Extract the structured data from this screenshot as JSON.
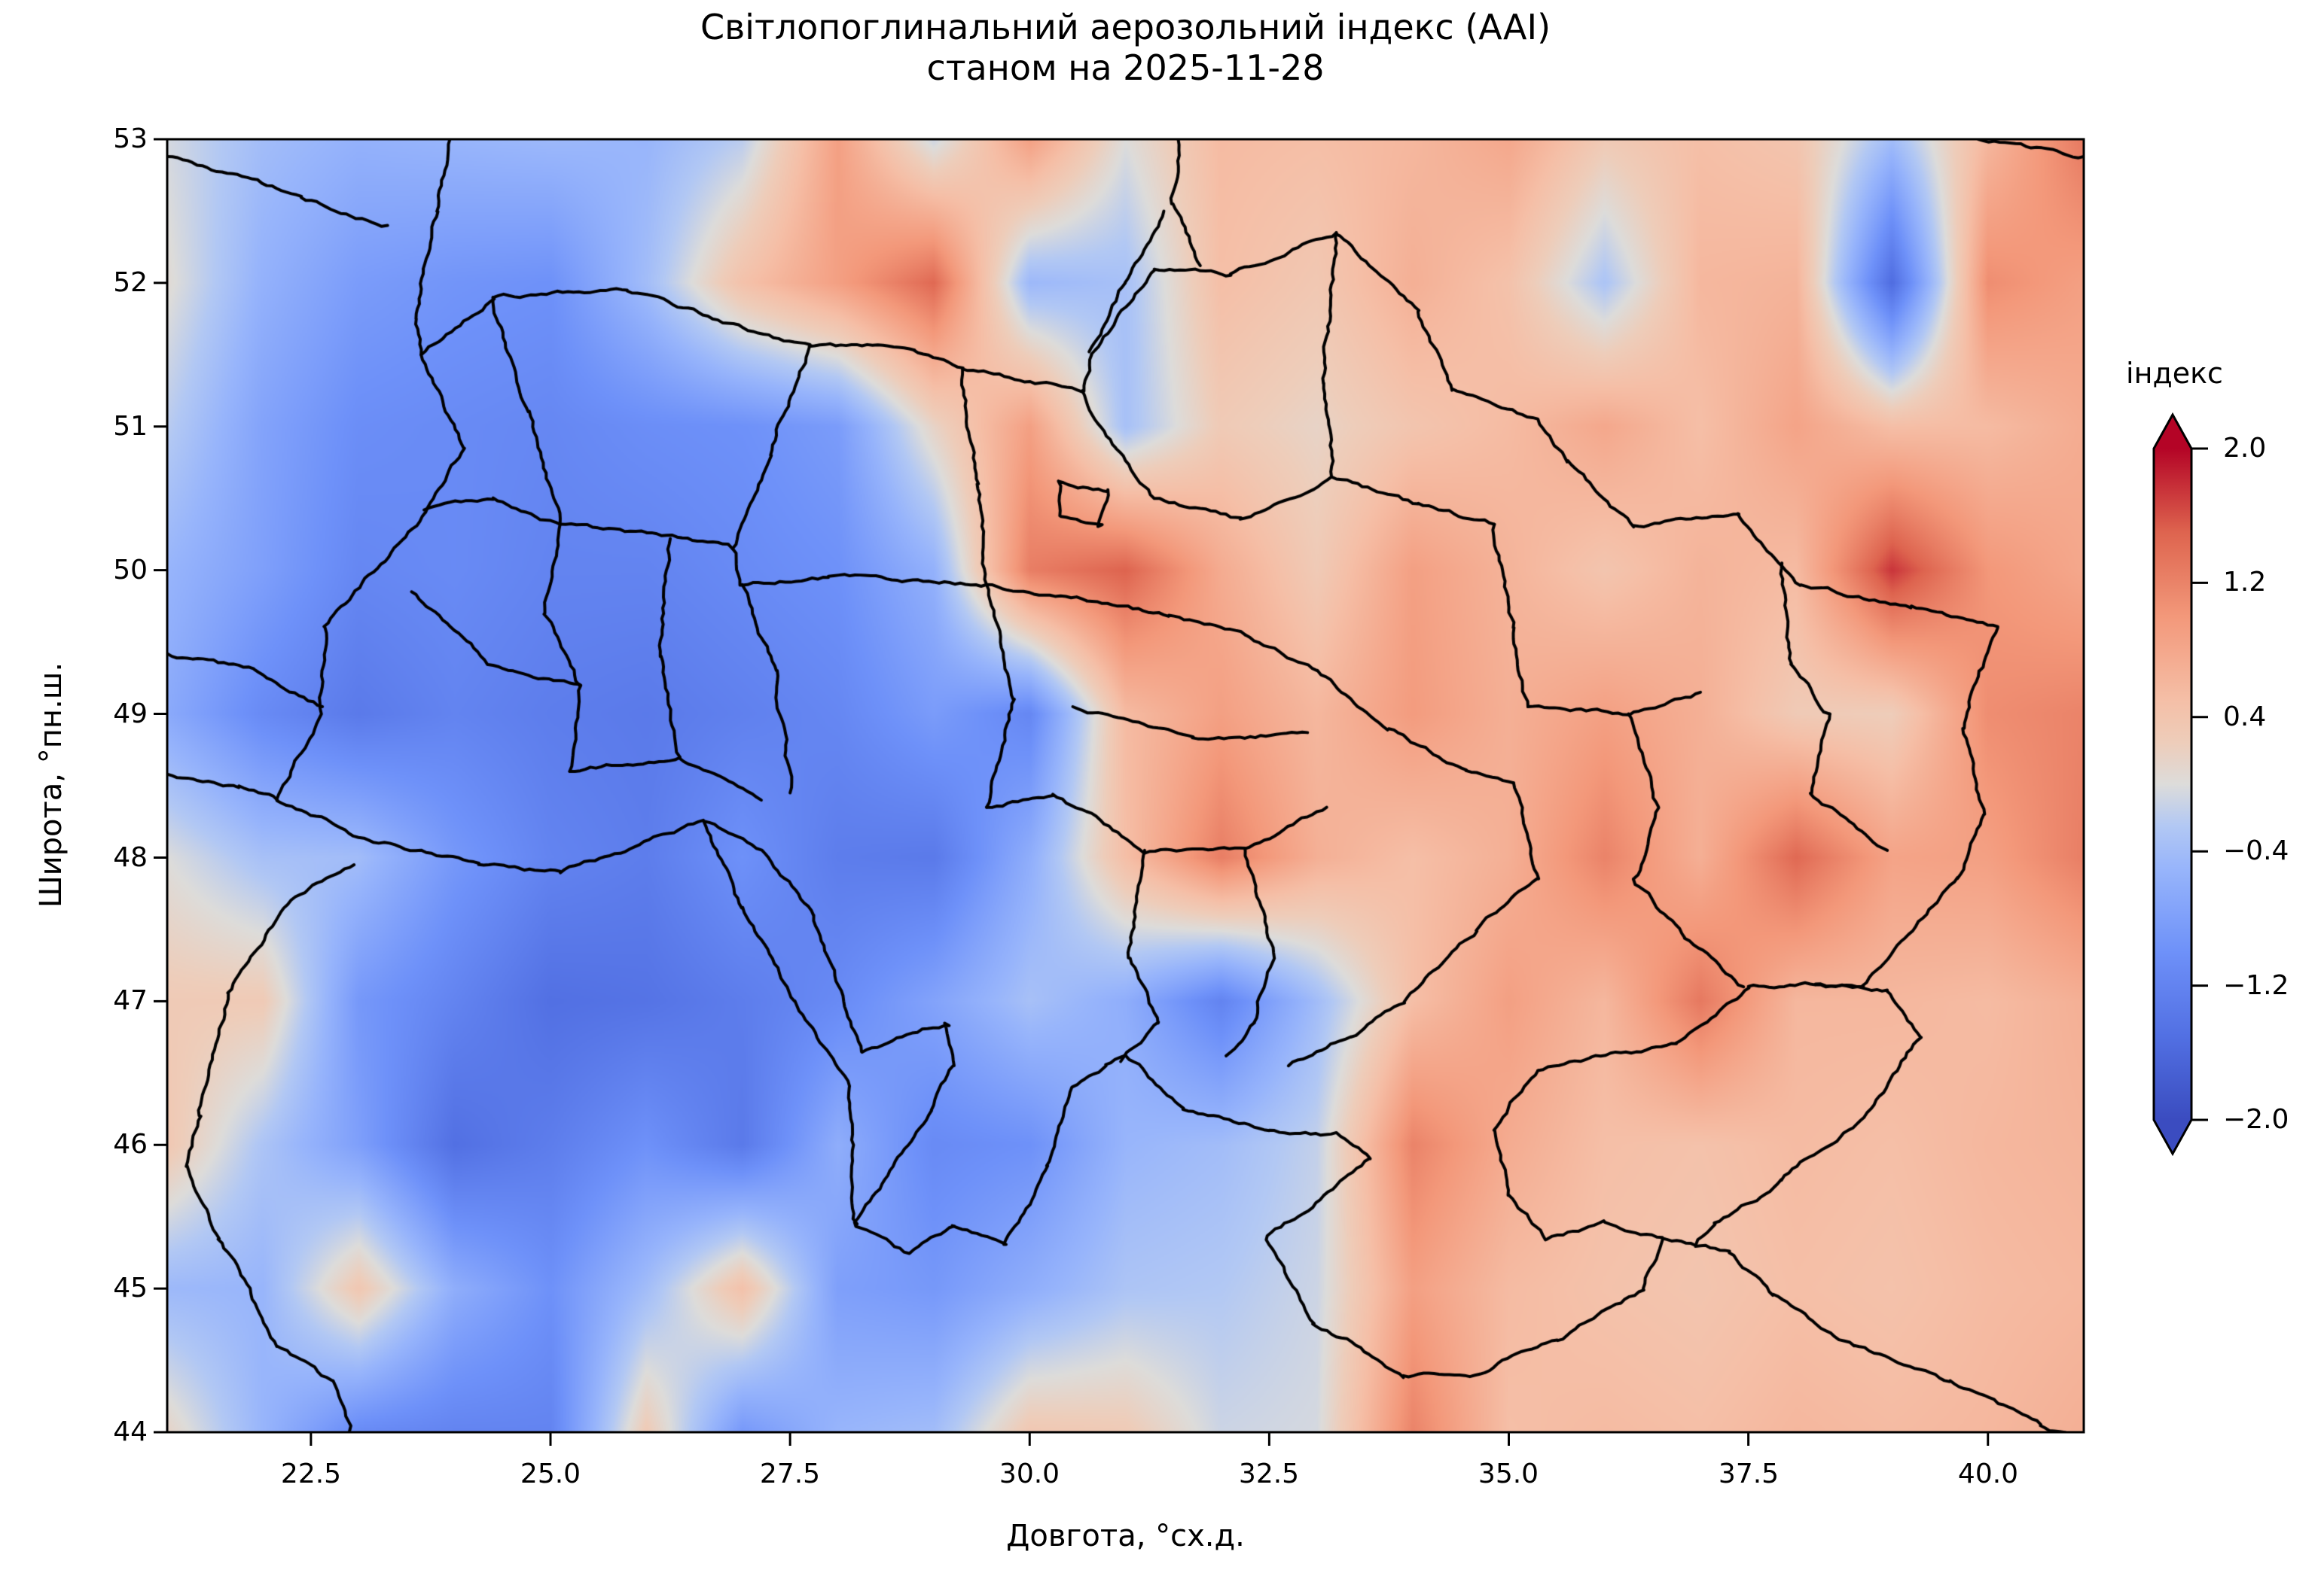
{
  "figure": {
    "title_line1": "Світлопоглинальний аерозольний індекс (AAI)",
    "title_line2": "станом на 2025-11-28"
  },
  "axes": {
    "xlabel": "Довгота, °сх.д.",
    "ylabel": "Широта, °пн.ш.",
    "x_tick_labels": [
      "22.5",
      "25.0",
      "27.5",
      "30.0",
      "32.5",
      "35.0",
      "37.5",
      "40.0"
    ],
    "x_tick_values": [
      22.5,
      25.0,
      27.5,
      30.0,
      32.5,
      35.0,
      37.5,
      40.0
    ],
    "y_tick_labels": [
      "53",
      "52",
      "51",
      "50",
      "49",
      "48",
      "47",
      "46",
      "45",
      "44"
    ],
    "y_tick_values": [
      53,
      52,
      51,
      50,
      49,
      48,
      47,
      46,
      45,
      44
    ],
    "xlim": [
      21,
      41
    ],
    "ylim": [
      44,
      53
    ]
  },
  "colorbar": {
    "title": "індекс",
    "tick_labels": [
      "2.0",
      "1.2",
      "0.4",
      "−0.4",
      "−1.2",
      "−2.0"
    ],
    "tick_values": [
      2.0,
      1.2,
      0.4,
      -0.4,
      -1.2,
      -2.0
    ],
    "vmin": -2.0,
    "vmax": 2.0,
    "colormap": "coolwarm",
    "extend": "both"
  },
  "chart_data": {
    "type": "heatmap",
    "title": "Світлопоглинальний аерозольний індекс (AAI) станом на 2025-11-28",
    "xlabel": "Довгота, °сх.д.",
    "ylabel": "Широта, °пн.ш.",
    "x": [
      21,
      22,
      23,
      24,
      25,
      26,
      27,
      28,
      29,
      30,
      31,
      32,
      33,
      34,
      35,
      36,
      37,
      38,
      39,
      40,
      41
    ],
    "y": [
      53,
      52,
      51,
      50,
      49,
      48,
      47,
      46,
      45,
      44
    ],
    "values": [
      [
        -0.05,
        -0.4,
        -0.55,
        -0.5,
        -0.45,
        -0.5,
        -0.2,
        0.9,
        -0.1,
        0.9,
        0.0,
        0.55,
        0.5,
        0.6,
        0.8,
        0.3,
        0.5,
        0.4,
        -0.4,
        0.6,
        1.3
      ],
      [
        0.05,
        -0.55,
        -0.85,
        -0.95,
        -1.0,
        -0.4,
        0.45,
        0.9,
        1.45,
        -0.45,
        -0.35,
        0.5,
        0.35,
        0.7,
        0.45,
        -0.3,
        0.6,
        0.65,
        -1.55,
        1.1,
        0.9
      ],
      [
        -0.2,
        -0.75,
        -1.05,
        -1.1,
        -1.15,
        -1.05,
        -1.0,
        -0.85,
        0.15,
        0.9,
        -0.35,
        0.3,
        0.15,
        0.4,
        0.55,
        0.8,
        0.5,
        0.85,
        0.5,
        0.55,
        0.75
      ],
      [
        -0.5,
        -0.8,
        -1.15,
        -1.1,
        -1.2,
        -1.2,
        -1.1,
        -1.0,
        -0.55,
        1.25,
        1.5,
        0.75,
        0.3,
        0.9,
        0.65,
        0.4,
        0.65,
        0.55,
        1.75,
        1.0,
        0.8
      ],
      [
        -0.65,
        -1.1,
        -1.35,
        -1.2,
        -1.3,
        -1.35,
        -1.25,
        -1.15,
        -0.85,
        -1.15,
        0.55,
        0.9,
        0.6,
        0.95,
        0.7,
        0.9,
        0.7,
        0.3,
        0.25,
        1.1,
        1.2
      ],
      [
        0.0,
        -0.35,
        -0.4,
        -0.9,
        -1.2,
        -1.3,
        -1.0,
        -1.3,
        -1.35,
        -0.6,
        0.5,
        1.25,
        0.7,
        0.5,
        0.7,
        1.2,
        0.7,
        1.45,
        0.85,
        0.9,
        1.25
      ],
      [
        0.3,
        0.3,
        -0.9,
        -1.2,
        -1.5,
        -1.45,
        -1.3,
        -1.1,
        -0.75,
        -0.35,
        -0.6,
        -1.2,
        -0.4,
        0.5,
        0.9,
        0.6,
        1.3,
        0.6,
        0.6,
        0.55,
        0.7
      ],
      [
        0.35,
        -0.3,
        -0.8,
        -1.5,
        -1.3,
        -1.0,
        -1.35,
        -0.6,
        -1.1,
        -1.0,
        -0.5,
        -0.4,
        -0.15,
        1.2,
        0.75,
        0.5,
        0.45,
        0.55,
        0.5,
        0.6,
        0.65
      ],
      [
        -0.45,
        -0.5,
        0.35,
        -0.6,
        -1.0,
        -0.4,
        0.45,
        -0.8,
        -0.9,
        -0.6,
        -0.3,
        -0.25,
        -0.1,
        0.9,
        0.55,
        0.45,
        0.4,
        0.5,
        0.45,
        0.55,
        0.6
      ],
      [
        0.15,
        -0.5,
        -1.1,
        -1.2,
        -1.2,
        0.3,
        -0.9,
        -0.5,
        -0.4,
        0.35,
        0.3,
        -0.1,
        -0.05,
        1.2,
        0.5,
        0.55,
        0.5,
        0.6,
        0.55,
        0.6,
        0.7
      ]
    ],
    "borders": {
      "country_outline": [
        [
          23.65,
          51.5
        ],
        [
          24.4,
          51.9
        ],
        [
          25.8,
          51.95
        ],
        [
          27.7,
          51.55
        ],
        [
          28.8,
          51.55
        ],
        [
          29.3,
          51.4
        ],
        [
          30.55,
          51.25
        ],
        [
          30.65,
          51.5
        ],
        [
          31.3,
          52.1
        ],
        [
          32.1,
          52.05
        ],
        [
          33.2,
          52.35
        ],
        [
          34.05,
          51.8
        ],
        [
          34.4,
          51.25
        ],
        [
          35.3,
          51.05
        ],
        [
          35.6,
          50.75
        ],
        [
          36.3,
          50.3
        ],
        [
          37.4,
          50.4
        ],
        [
          38.05,
          49.9
        ],
        [
          39.2,
          49.75
        ],
        [
          40.1,
          49.6
        ],
        [
          39.9,
          49.3
        ],
        [
          39.75,
          48.9
        ],
        [
          39.95,
          48.3
        ],
        [
          39.7,
          47.85
        ],
        [
          38.7,
          47.1
        ],
        [
          38.2,
          47.12
        ],
        [
          37.5,
          47.1
        ],
        [
          36.75,
          46.7
        ],
        [
          35.85,
          46.62
        ],
        [
          35.3,
          46.52
        ],
        [
          34.85,
          46.1
        ],
        [
          35.0,
          45.65
        ],
        [
          35.4,
          45.35
        ],
        [
          36.0,
          45.45
        ],
        [
          36.6,
          45.35
        ],
        [
          36.4,
          45.0
        ],
        [
          35.5,
          44.65
        ],
        [
          34.7,
          44.4
        ],
        [
          33.9,
          44.38
        ],
        [
          33.4,
          44.6
        ],
        [
          32.95,
          44.75
        ],
        [
          32.5,
          45.35
        ],
        [
          33.55,
          45.9
        ],
        [
          33.2,
          46.08
        ],
        [
          32.5,
          46.1
        ],
        [
          31.6,
          46.25
        ],
        [
          31.0,
          46.62
        ],
        [
          30.8,
          46.55
        ],
        [
          30.45,
          46.4
        ],
        [
          30.2,
          45.85
        ],
        [
          29.75,
          45.3
        ],
        [
          29.2,
          45.45
        ],
        [
          28.75,
          45.25
        ],
        [
          28.2,
          45.45
        ],
        [
          28.95,
          46.25
        ],
        [
          29.2,
          46.55
        ],
        [
          29.15,
          46.85
        ],
        [
          28.25,
          46.65
        ],
        [
          27.75,
          47.6
        ],
        [
          27.2,
          48.05
        ],
        [
          26.6,
          48.25
        ],
        [
          25.1,
          47.9
        ],
        [
          24.25,
          47.95
        ],
        [
          23.15,
          48.1
        ],
        [
          22.15,
          48.4
        ],
        [
          22.6,
          49.0
        ],
        [
          22.65,
          49.6
        ],
        [
          23.7,
          50.4
        ],
        [
          24.1,
          50.85
        ],
        [
          23.65,
          51.5
        ]
      ],
      "admin_lines": [
        [
          [
            24.4,
            51.9
          ],
          [
            24.75,
            51.1
          ],
          [
            25.1,
            50.32
          ]
        ],
        [
          [
            23.68,
            50.42
          ],
          [
            24.4,
            50.5
          ],
          [
            25.1,
            50.32
          ]
        ],
        [
          [
            27.7,
            51.55
          ],
          [
            27.3,
            50.8
          ],
          [
            26.9,
            50.15
          ]
        ],
        [
          [
            25.1,
            50.32
          ],
          [
            26.0,
            50.25
          ],
          [
            26.9,
            50.15
          ]
        ],
        [
          [
            29.3,
            51.4
          ],
          [
            29.45,
            50.6
          ],
          [
            29.55,
            49.9
          ]
        ],
        [
          [
            26.9,
            50.15
          ],
          [
            27.0,
            49.9
          ],
          [
            27.9,
            49.95
          ],
          [
            29.55,
            49.9
          ]
        ],
        [
          [
            25.1,
            50.32
          ],
          [
            24.95,
            49.7
          ],
          [
            25.3,
            49.2
          ]
        ],
        [
          [
            26.25,
            50.22
          ],
          [
            26.15,
            49.4
          ],
          [
            26.35,
            48.7
          ]
        ],
        [
          [
            27.0,
            49.9
          ],
          [
            27.35,
            49.3
          ],
          [
            27.5,
            48.45
          ]
        ],
        [
          [
            23.55,
            49.85
          ],
          [
            24.35,
            49.35
          ],
          [
            25.3,
            49.2
          ],
          [
            25.2,
            48.6
          ]
        ],
        [
          [
            25.2,
            48.6
          ],
          [
            26.35,
            48.7
          ],
          [
            27.2,
            48.4
          ]
        ],
        [
          [
            29.55,
            49.9
          ],
          [
            29.85,
            49.1
          ],
          [
            29.55,
            48.35
          ]
        ],
        [
          [
            29.55,
            49.9
          ],
          [
            30.6,
            49.8
          ],
          [
            31.45,
            49.68
          ],
          [
            32.25,
            49.55
          ]
        ],
        [
          [
            30.45,
            49.05
          ],
          [
            31.7,
            48.82
          ],
          [
            32.9,
            48.87
          ]
        ],
        [
          [
            32.25,
            49.55
          ],
          [
            33.0,
            49.3
          ],
          [
            33.75,
            48.9
          ],
          [
            34.55,
            48.6
          ],
          [
            35.05,
            48.52
          ]
        ],
        [
          [
            33.2,
            52.35
          ],
          [
            33.05,
            51.3
          ],
          [
            33.15,
            50.65
          ]
        ],
        [
          [
            33.15,
            50.65
          ],
          [
            34.05,
            50.45
          ],
          [
            34.85,
            50.32
          ]
        ],
        [
          [
            34.85,
            50.32
          ],
          [
            35.05,
            49.6
          ],
          [
            35.2,
            49.05
          ]
        ],
        [
          [
            30.55,
            51.25
          ],
          [
            30.9,
            50.85
          ],
          [
            31.3,
            50.5
          ],
          [
            32.2,
            50.35
          ],
          [
            33.15,
            50.65
          ]
        ],
        [
          [
            35.2,
            49.05
          ],
          [
            36.25,
            49.0
          ],
          [
            37.0,
            49.15
          ]
        ],
        [
          [
            37.85,
            50.05
          ],
          [
            37.95,
            49.35
          ],
          [
            38.35,
            49.0
          ]
        ],
        [
          [
            38.35,
            49.0
          ],
          [
            38.15,
            48.45
          ],
          [
            38.95,
            48.05
          ]
        ],
        [
          [
            36.25,
            49.0
          ],
          [
            36.55,
            48.35
          ],
          [
            36.3,
            47.85
          ]
        ],
        [
          [
            35.05,
            48.52
          ],
          [
            35.3,
            47.85
          ],
          [
            34.65,
            47.5
          ],
          [
            33.9,
            47.0
          ],
          [
            33.35,
            46.75
          ],
          [
            32.7,
            46.55
          ]
        ],
        [
          [
            36.3,
            47.85
          ],
          [
            36.85,
            47.45
          ],
          [
            37.45,
            47.1
          ]
        ],
        [
          [
            32.25,
            48.05
          ],
          [
            32.55,
            47.3
          ],
          [
            32.35,
            46.85
          ],
          [
            32.05,
            46.62
          ]
        ],
        [
          [
            31.2,
            48.05
          ],
          [
            31.05,
            47.3
          ],
          [
            31.35,
            46.85
          ],
          [
            30.95,
            46.58
          ]
        ],
        [
          [
            29.55,
            48.35
          ],
          [
            30.25,
            48.45
          ],
          [
            31.2,
            48.05
          ],
          [
            32.25,
            48.05
          ],
          [
            33.1,
            48.35
          ]
        ],
        [
          [
            30.3,
            50.62
          ],
          [
            30.82,
            50.56
          ],
          [
            30.75,
            50.3
          ],
          [
            30.33,
            50.38
          ],
          [
            30.3,
            50.62
          ]
        ],
        [
          [
            26.6,
            48.25
          ],
          [
            27.0,
            47.65
          ],
          [
            27.55,
            47.0
          ],
          [
            28.1,
            46.4
          ],
          [
            28.2,
            45.45
          ]
        ],
        [
          [
            22.95,
            47.95
          ],
          [
            22.3,
            47.7
          ],
          [
            21.65,
            47.05
          ],
          [
            21.35,
            46.2
          ],
          [
            21.2,
            45.85
          ],
          [
            21.55,
            45.35
          ],
          [
            22.15,
            44.6
          ],
          [
            22.7,
            44.35
          ],
          [
            22.9,
            44.0
          ]
        ],
        [
          [
            21.0,
            49.42
          ],
          [
            21.9,
            49.3
          ],
          [
            22.62,
            49.05
          ]
        ],
        [
          [
            21.0,
            48.58
          ],
          [
            21.75,
            48.5
          ],
          [
            22.15,
            48.4
          ]
        ],
        [
          [
            21.0,
            52.88
          ],
          [
            22.4,
            52.6
          ],
          [
            23.3,
            52.4
          ]
        ],
        [
          [
            23.95,
            53.0
          ],
          [
            23.8,
            52.5
          ],
          [
            23.65,
            52.1
          ],
          [
            23.6,
            51.75
          ],
          [
            23.65,
            51.5
          ]
        ],
        [
          [
            31.78,
            52.12
          ],
          [
            31.5,
            52.55
          ],
          [
            31.55,
            53.0
          ]
        ],
        [
          [
            31.4,
            52.5
          ],
          [
            31.0,
            52.0
          ],
          [
            30.62,
            51.52
          ]
        ],
        [
          [
            39.9,
            53.0
          ],
          [
            41.0,
            52.88
          ]
        ],
        [
          [
            38.2,
            47.12
          ],
          [
            38.95,
            47.08
          ],
          [
            39.3,
            46.75
          ],
          [
            38.7,
            46.2
          ],
          [
            37.85,
            45.75
          ],
          [
            37.15,
            45.45
          ],
          [
            36.95,
            45.3
          ]
        ],
        [
          [
            36.6,
            45.35
          ],
          [
            36.95,
            45.3
          ],
          [
            37.3,
            45.25
          ],
          [
            37.75,
            44.95
          ],
          [
            38.6,
            44.6
          ],
          [
            39.6,
            44.35
          ],
          [
            40.55,
            44.05
          ],
          [
            41.0,
            43.95
          ]
        ]
      ]
    }
  }
}
